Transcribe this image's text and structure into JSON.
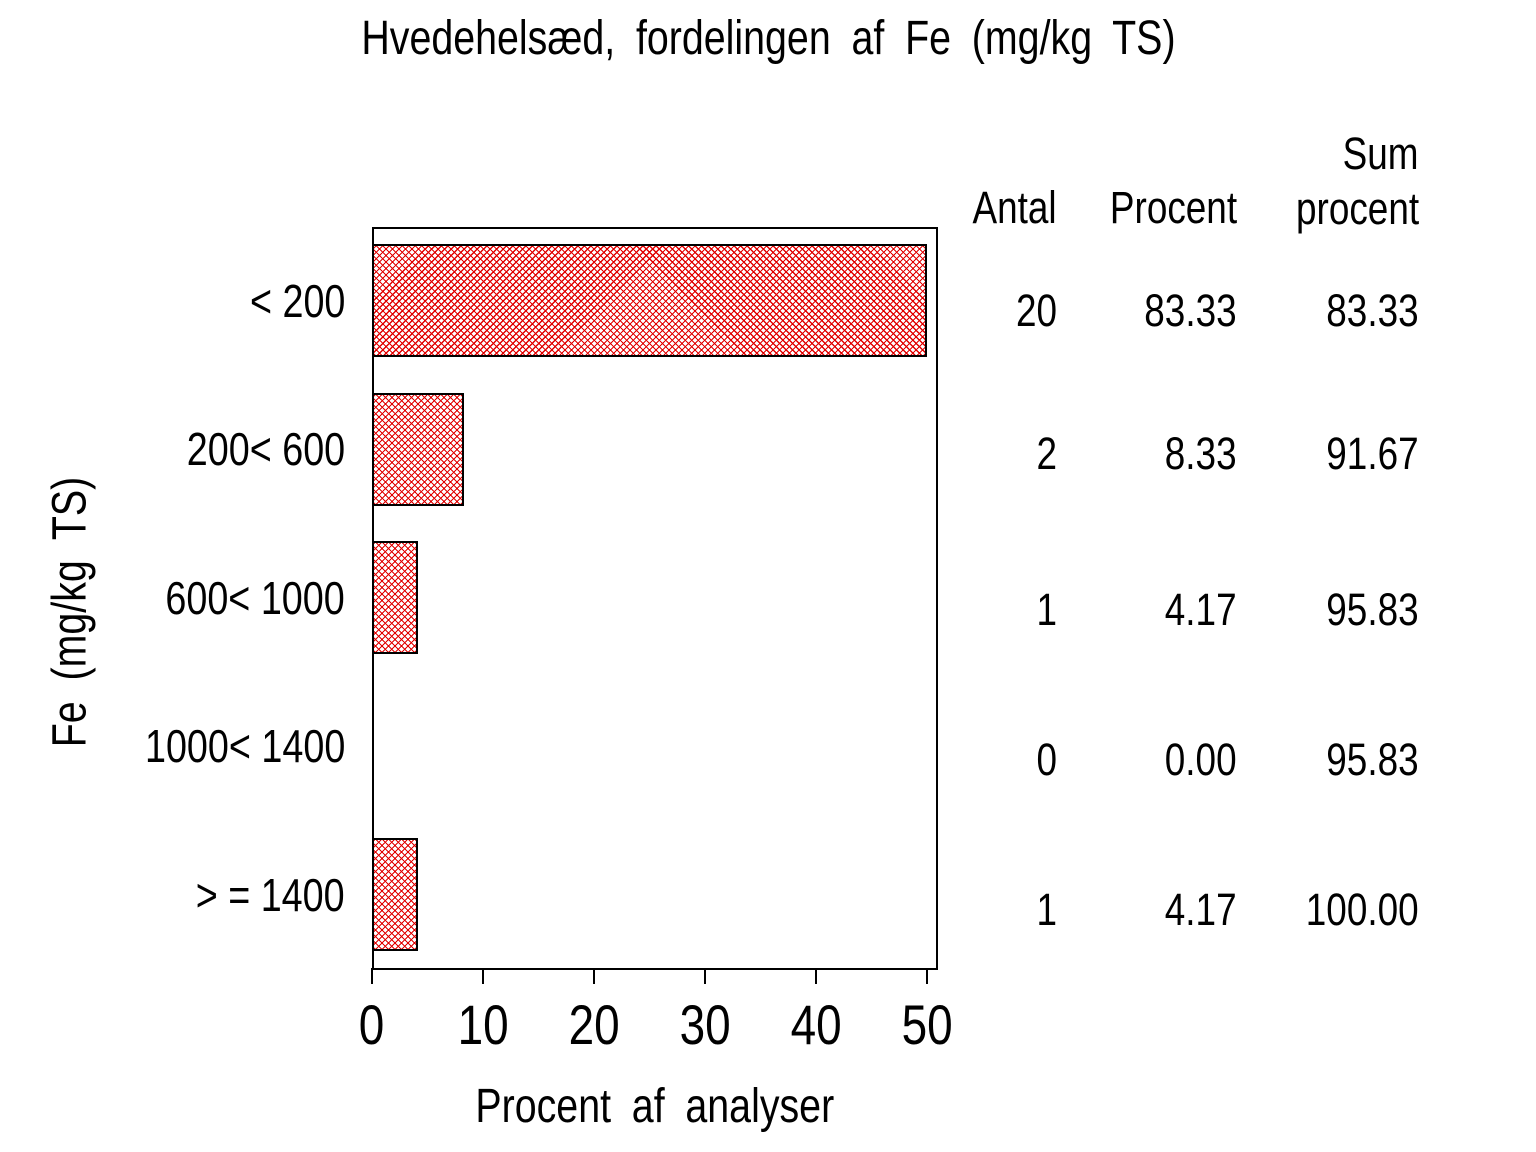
{
  "title": "Hvedehelsæd, fordelingen af Fe (mg/kg TS)",
  "y_axis": {
    "title": "Fe (mg/kg TS)"
  },
  "x_axis": {
    "title": "Procent af analyser",
    "tick_labels": [
      "0",
      "10",
      "20",
      "30",
      "40",
      "50"
    ]
  },
  "table": {
    "col_antal": "Antal",
    "col_procent": "Procent",
    "col_sum_line1": "Sum",
    "col_sum_line2": "procent",
    "rows": [
      [
        "20",
        "83.33",
        "83.33"
      ],
      [
        "2",
        "8.33",
        "91.67"
      ],
      [
        "1",
        "4.17",
        "95.83"
      ],
      [
        "0",
        "0.00",
        "95.83"
      ],
      [
        "1",
        "4.17",
        "100.00"
      ]
    ]
  },
  "chart_data": {
    "type": "bar",
    "orientation": "horizontal",
    "title": "Hvedehelsæd, fordelingen af Fe (mg/kg TS)",
    "xlabel": "Procent af analyser",
    "ylabel": "Fe (mg/kg TS)",
    "categories": [
      "< 200",
      "200< 600",
      "600< 1000",
      "1000< 1400",
      "> = 1400"
    ],
    "series": [
      {
        "name": "Procent",
        "values": [
          83.33,
          8.33,
          4.17,
          0.0,
          4.17
        ]
      },
      {
        "name": "Antal",
        "values": [
          20,
          2,
          1,
          0,
          1
        ]
      },
      {
        "name": "Sum procent",
        "values": [
          83.33,
          91.67,
          95.83,
          95.83,
          100.0
        ]
      }
    ],
    "displayed_bar_lengths": [
      50,
      8.33,
      4.17,
      0,
      4.17
    ],
    "xlim": [
      0,
      50
    ],
    "xticks": [
      0,
      10,
      20,
      30,
      40,
      50
    ],
    "grid": false,
    "legend": "none",
    "bar_fill_style": "red diagonal crosshatch with black outline",
    "bar_color": "#e10000",
    "layout_note": "first bar (83.33%) clipped at axis max 50"
  }
}
